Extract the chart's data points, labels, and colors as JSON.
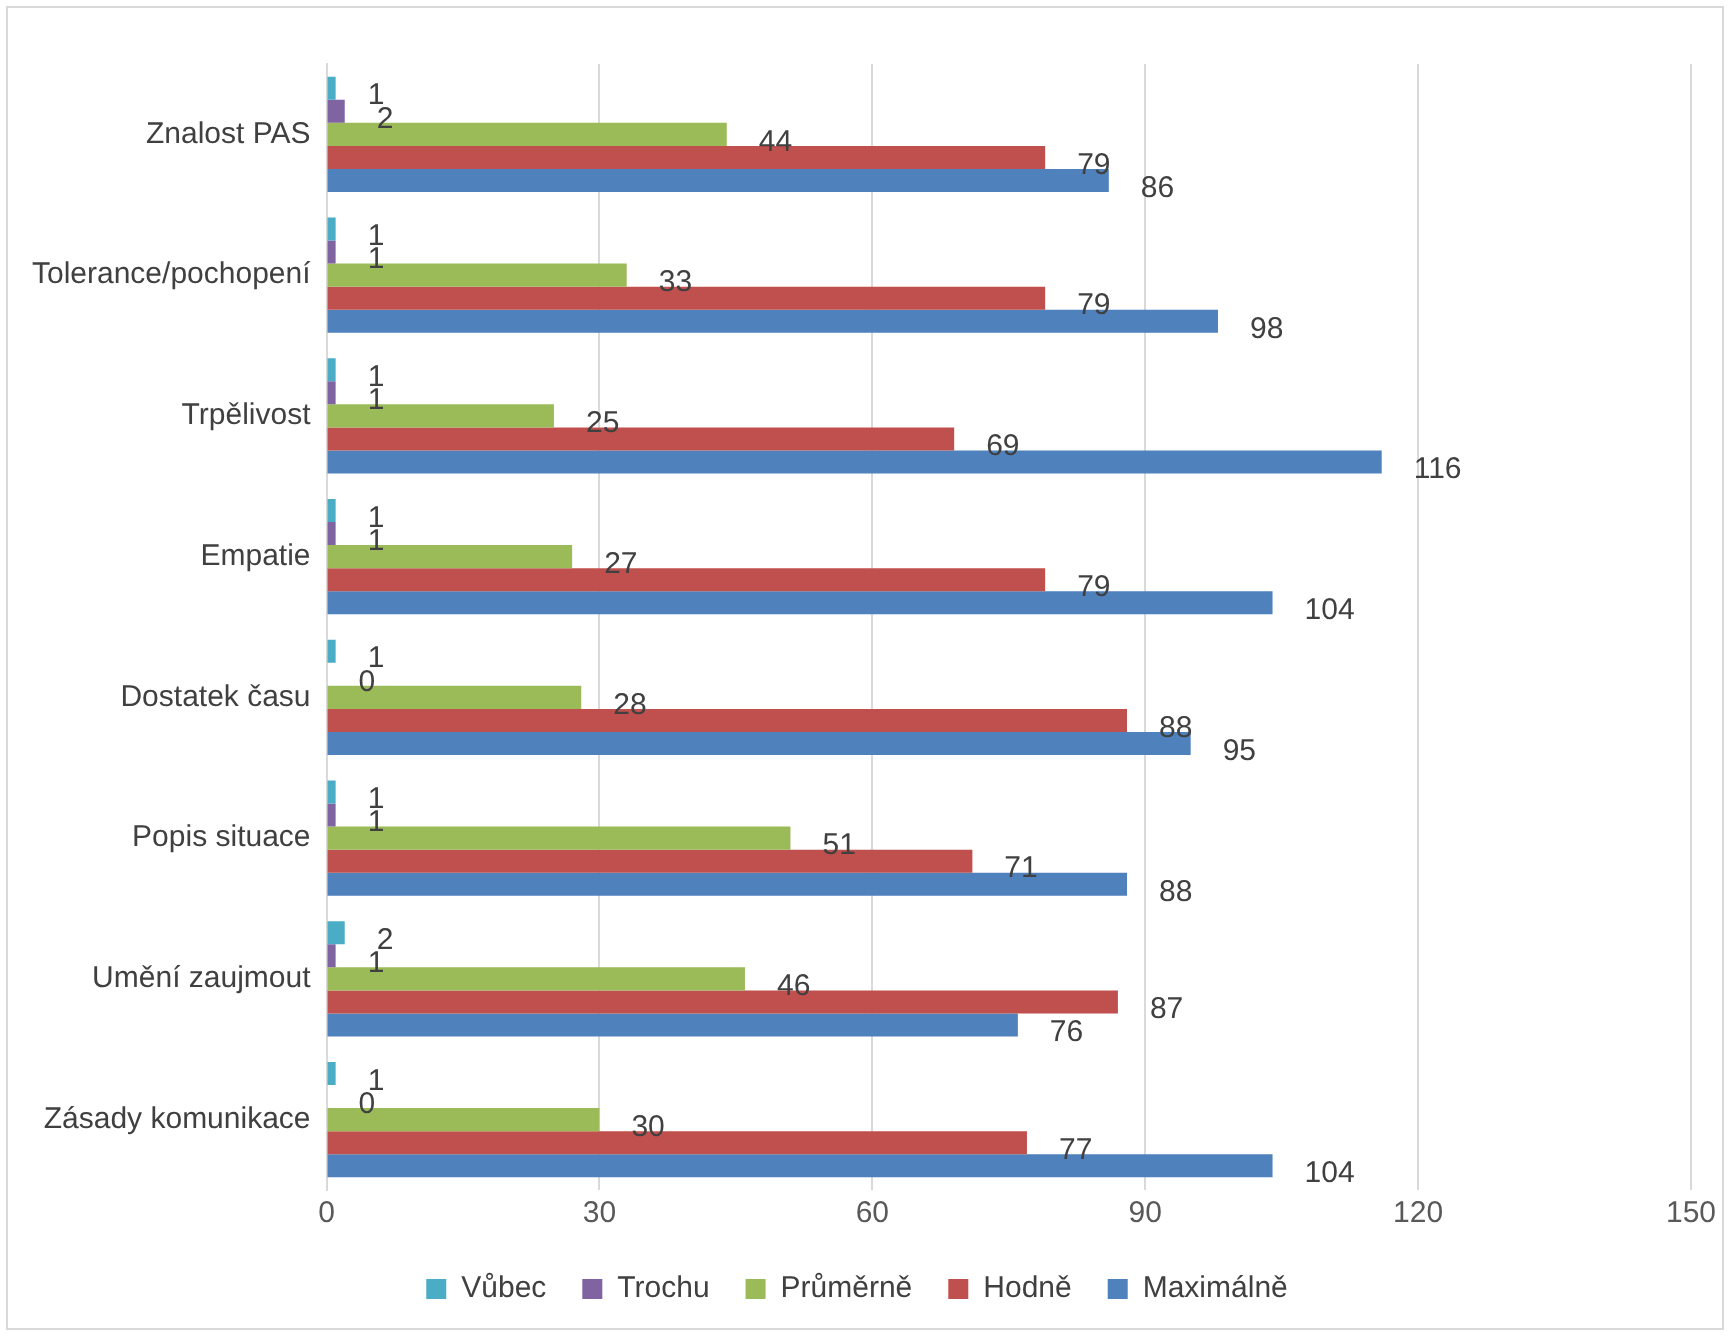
{
  "chart_data": {
    "type": "bar",
    "orientation": "horizontal",
    "categories": [
      "Znalost PAS",
      "Tolerance/pochopení",
      "Trpělivost",
      "Empatie",
      "Dostatek času",
      "Popis situace",
      "Umění zaujmout",
      "Zásady komunikace"
    ],
    "series": [
      {
        "name": "Vůbec",
        "color": "#4bacc6",
        "values": [
          1,
          1,
          1,
          1,
          1,
          1,
          2,
          1
        ]
      },
      {
        "name": "Trochu",
        "color": "#8064a2",
        "values": [
          2,
          1,
          1,
          1,
          0,
          1,
          1,
          0
        ]
      },
      {
        "name": "Průměrně",
        "color": "#9bbb59",
        "values": [
          44,
          33,
          25,
          27,
          28,
          51,
          46,
          30
        ]
      },
      {
        "name": "Hodně",
        "color": "#c0504d",
        "values": [
          79,
          79,
          69,
          79,
          88,
          71,
          87,
          77
        ]
      },
      {
        "name": "Maximálně",
        "color": "#4f81bd",
        "values": [
          86,
          98,
          116,
          104,
          95,
          88,
          76,
          104
        ]
      }
    ],
    "xlim": [
      0,
      150
    ],
    "xticks": [
      0,
      30,
      60,
      90,
      120,
      150
    ],
    "grid": "x",
    "legend": "bottom",
    "data_labels": true
  }
}
